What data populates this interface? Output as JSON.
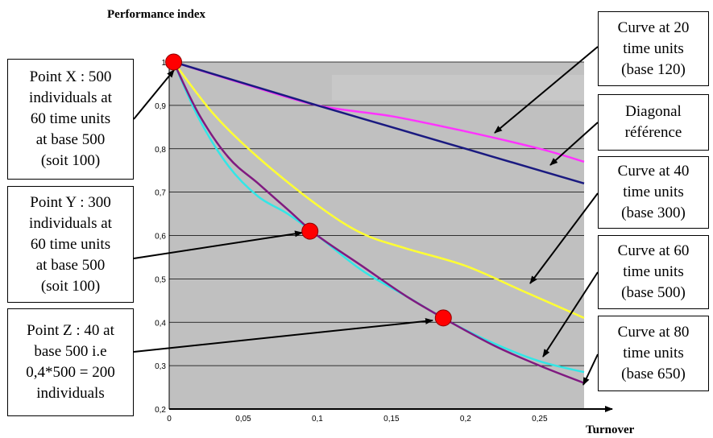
{
  "chart_data": {
    "type": "line",
    "title": "",
    "ylabel": "Performance index",
    "xlabel": "Turnover",
    "xlim": [
      0,
      0.28
    ],
    "ylim": [
      0.2,
      1
    ],
    "x_ticks": [
      "0",
      "0,05",
      "0,1",
      "0,15",
      "0,2",
      "0,25"
    ],
    "y_ticks": [
      "0,2",
      "0,3",
      "0,4",
      "0,5",
      "0,6",
      "0,7",
      "0,8",
      "0,9",
      "1"
    ],
    "grid": true,
    "series": [
      {
        "name": "Curve at 20 time units (base 120)",
        "color": "#ff33ff",
        "points": [
          [
            0.003,
            1.0
          ],
          [
            0.05,
            0.95
          ],
          [
            0.1,
            0.9
          ],
          [
            0.15,
            0.875
          ],
          [
            0.2,
            0.84
          ],
          [
            0.25,
            0.8
          ],
          [
            0.28,
            0.77
          ]
        ]
      },
      {
        "name": "Diagonal référence",
        "color": "#1a1a80",
        "points": [
          [
            0.003,
            1.0
          ],
          [
            0.1,
            0.9
          ],
          [
            0.15,
            0.85
          ],
          [
            0.2,
            0.8
          ],
          [
            0.25,
            0.75
          ],
          [
            0.28,
            0.72
          ]
        ]
      },
      {
        "name": "Curve at 40 time units (base 300)",
        "color": "#ffff33",
        "points": [
          [
            0.003,
            1.0
          ],
          [
            0.03,
            0.88
          ],
          [
            0.06,
            0.78
          ],
          [
            0.1,
            0.67
          ],
          [
            0.13,
            0.605
          ],
          [
            0.16,
            0.57
          ],
          [
            0.2,
            0.53
          ],
          [
            0.24,
            0.47
          ],
          [
            0.28,
            0.41
          ]
        ]
      },
      {
        "name": "Curve at 60 time units (base 500)",
        "color": "#33e6e6",
        "points": [
          [
            0.003,
            1.0
          ],
          [
            0.02,
            0.87
          ],
          [
            0.04,
            0.76
          ],
          [
            0.06,
            0.69
          ],
          [
            0.08,
            0.65
          ],
          [
            0.1,
            0.6
          ],
          [
            0.13,
            0.52
          ],
          [
            0.16,
            0.46
          ],
          [
            0.19,
            0.4
          ],
          [
            0.22,
            0.35
          ],
          [
            0.25,
            0.31
          ],
          [
            0.28,
            0.285
          ]
        ]
      },
      {
        "name": "Curve at 80 time units (base 650)",
        "color": "#801a80",
        "points": [
          [
            0.003,
            1.0
          ],
          [
            0.02,
            0.88
          ],
          [
            0.04,
            0.78
          ],
          [
            0.06,
            0.72
          ],
          [
            0.08,
            0.66
          ],
          [
            0.1,
            0.6
          ],
          [
            0.13,
            0.53
          ],
          [
            0.16,
            0.46
          ],
          [
            0.19,
            0.4
          ],
          [
            0.22,
            0.345
          ],
          [
            0.25,
            0.3
          ],
          [
            0.28,
            0.26
          ]
        ]
      }
    ],
    "highlight_points": [
      {
        "label": "X",
        "x": 0.003,
        "y": 1.0
      },
      {
        "label": "Y",
        "x": 0.095,
        "y": 0.61
      },
      {
        "label": "Z",
        "x": 0.185,
        "y": 0.41
      }
    ],
    "colors": {
      "plot_bg": "#c0c0c0",
      "grid": "#000000",
      "marker": "#ff0000"
    }
  },
  "annotations": {
    "point_x": "Point X : 500\nindividuals at\n60 time units\nat base 500\n(soit 100)",
    "point_y": "Point Y : 300\nindividuals at\n60 time units\nat base 500\n(soit 100)",
    "point_z": "Point Z : 40 at\nbase 500 i.e\n0,4*500 = 200\nindividuals",
    "curve_20": "Curve at 20\ntime units\n(base 120)",
    "diagonal": "Diagonal\nréférence",
    "curve_40": "Curve at 40\ntime units\n(base 300)",
    "curve_60": "Curve at 60\ntime units\n(base 500)",
    "curve_80": "Curve at 80\ntime units\n(base 650)"
  }
}
